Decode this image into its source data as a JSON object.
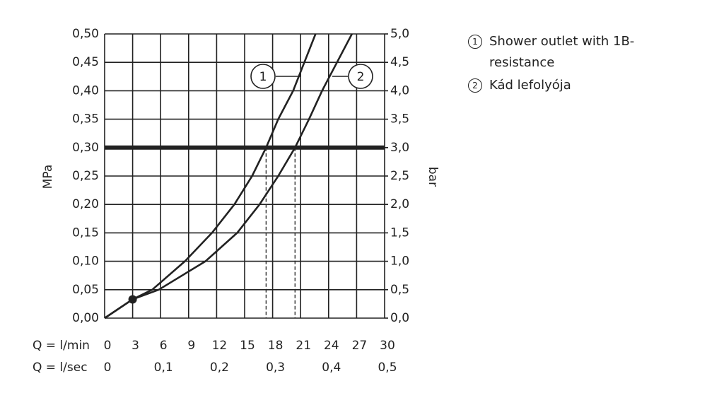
{
  "chart_data": {
    "type": "line",
    "xlabel": "Q = l/min",
    "x2label": "Q = l/sec",
    "ylabel": "MPa",
    "y2label": "bar",
    "xlim": [
      0,
      30
    ],
    "xticks": [
      0,
      3,
      6,
      9,
      12,
      15,
      18,
      21,
      24,
      27,
      30
    ],
    "x2lim": [
      0,
      0.5
    ],
    "x2ticks": [
      0,
      {
        "value": 0.1,
        "label": "0,1"
      },
      {
        "value": 0.2,
        "label": "0,2"
      },
      {
        "value": 0.3,
        "label": "0,3"
      },
      {
        "value": 0.4,
        "label": "0,4"
      },
      {
        "value": 0.5,
        "label": "0,5"
      }
    ],
    "ylim": [
      0,
      0.5
    ],
    "yticks": [
      {
        "value": 0,
        "label": "0,00"
      },
      {
        "value": 0.05,
        "label": "0,05"
      },
      {
        "value": 0.1,
        "label": "0,10"
      },
      {
        "value": 0.15,
        "label": "0,15"
      },
      {
        "value": 0.2,
        "label": "0,20"
      },
      {
        "value": 0.25,
        "label": "0,25"
      },
      {
        "value": 0.3,
        "label": "0,30"
      },
      {
        "value": 0.35,
        "label": "0,35"
      },
      {
        "value": 0.4,
        "label": "0,40"
      },
      {
        "value": 0.45,
        "label": "0,45"
      },
      {
        "value": 0.5,
        "label": "0,50"
      }
    ],
    "y2lim": [
      0,
      5
    ],
    "y2ticks": [
      {
        "value": 0,
        "label": "0,0"
      },
      {
        "value": 0.5,
        "label": "0,5"
      },
      {
        "value": 1,
        "label": "1,0"
      },
      {
        "value": 1.5,
        "label": "1,5"
      },
      {
        "value": 2,
        "label": "2,0"
      },
      {
        "value": 2.5,
        "label": "2,5"
      },
      {
        "value": 3,
        "label": "3,0"
      },
      {
        "value": 3.5,
        "label": "3,5"
      },
      {
        "value": 4,
        "label": "4,0"
      },
      {
        "value": 4.5,
        "label": "4,5"
      },
      {
        "value": 5,
        "label": "5,0"
      }
    ],
    "grid": true,
    "color": "#222222",
    "series": [
      {
        "name": "Shower outlet with 1B-resistance",
        "label": "1",
        "x": [
          0,
          3,
          5.1,
          8.6,
          11.5,
          13.9,
          15.8,
          17.3,
          18.6,
          20.2,
          21.4,
          22.6
        ],
        "values": [
          0,
          0.033,
          0.05,
          0.1,
          0.15,
          0.2,
          0.25,
          0.3,
          0.35,
          0.4,
          0.45,
          0.5
        ]
      },
      {
        "name": "Kád lefolyója",
        "label": "2",
        "x": [
          0,
          3,
          5.8,
          10.8,
          14.2,
          16.6,
          18.6,
          20.4,
          21.9,
          23.3,
          24.9,
          26.5
        ],
        "values": [
          0,
          0.033,
          0.05,
          0.1,
          0.15,
          0.2,
          0.25,
          0.3,
          0.35,
          0.4,
          0.45,
          0.5
        ]
      }
    ],
    "marker": {
      "x": 3,
      "y": 0.033
    },
    "reference_line": {
      "y": 0.3,
      "x": [
        17.3,
        20.4
      ]
    }
  }
}
